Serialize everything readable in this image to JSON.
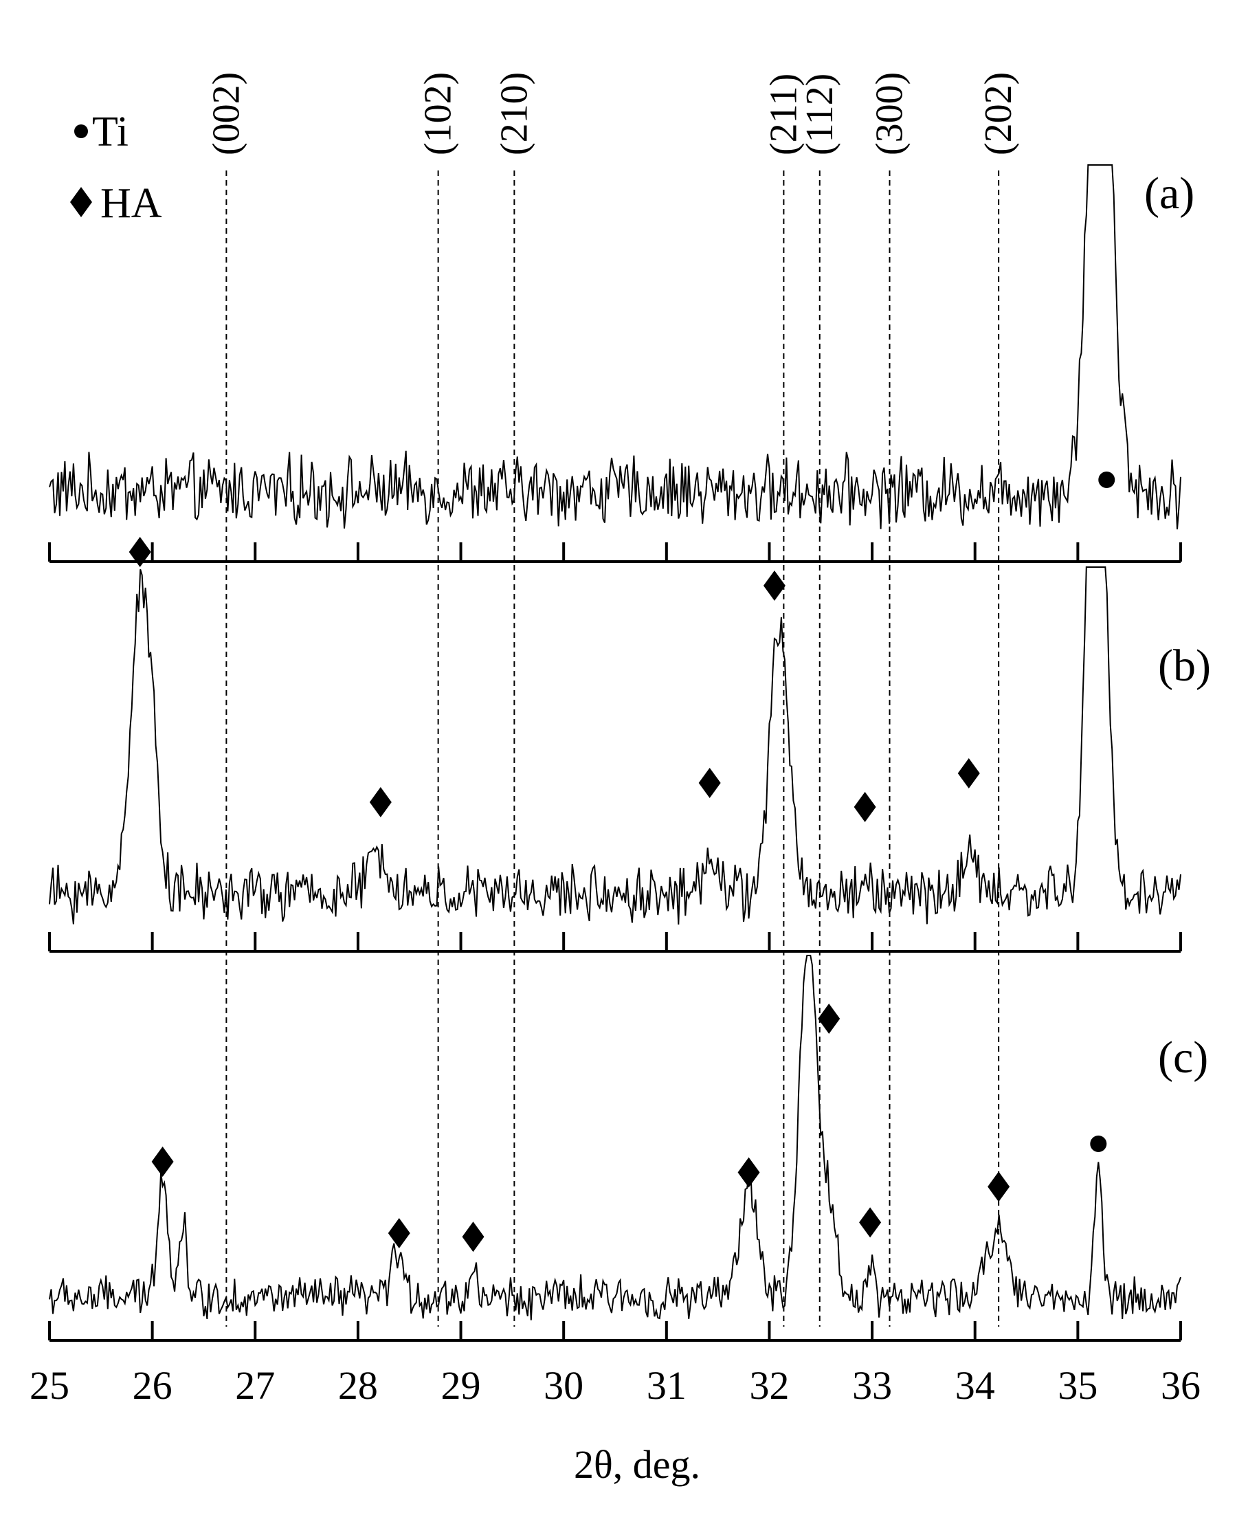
{
  "chart_data": {
    "type": "line",
    "xlabel": "2θ, deg.",
    "xlim": [
      25,
      36
    ],
    "x_ticks": [
      "25",
      "26",
      "27",
      "28",
      "29",
      "30",
      "31",
      "32",
      "33",
      "34",
      "35",
      "36"
    ],
    "grid": false,
    "legend": {
      "placement": "top-left",
      "entries": [
        {
          "marker": "circle",
          "label": "Ti"
        },
        {
          "marker": "diamond",
          "label": "HA"
        }
      ]
    },
    "reference_lines": [
      {
        "label": "(002)",
        "x": 26.72
      },
      {
        "label": "(102)",
        "x": 28.78
      },
      {
        "label": "(210)",
        "x": 29.52
      },
      {
        "label": "(211)",
        "x": 32.14
      },
      {
        "label": "(112)",
        "x": 32.49
      },
      {
        "label": "(300)",
        "x": 33.17
      },
      {
        "label": "(202)",
        "x": 34.23
      }
    ],
    "panels": [
      {
        "label": "(a)",
        "baseline": 0.12,
        "noise": 0.045,
        "peaks": [
          {
            "x": 35.22,
            "height": 1.25,
            "width": 0.13
          },
          {
            "x": 35.05,
            "height": 0.1,
            "width": 0.09
          },
          {
            "x": 35.45,
            "height": 0.06,
            "width": 0.08
          }
        ],
        "markers": [
          {
            "type": "Ti",
            "x": 35.25,
            "y": 1.0
          }
        ]
      },
      {
        "label": "(b)",
        "baseline": 0.12,
        "noise": 0.045,
        "peaks": [
          {
            "x": 25.88,
            "height": 0.62,
            "width": 0.13
          },
          {
            "x": 26.02,
            "height": 0.18,
            "width": 0.09
          },
          {
            "x": 28.2,
            "height": 0.08,
            "width": 0.14
          },
          {
            "x": 31.45,
            "height": 0.09,
            "width": 0.1
          },
          {
            "x": 32.1,
            "height": 0.55,
            "width": 0.13
          },
          {
            "x": 32.95,
            "height": 0.04,
            "width": 0.05
          },
          {
            "x": 33.95,
            "height": 0.07,
            "width": 0.12
          },
          {
            "x": 35.18,
            "height": 1.3,
            "width": 0.12
          }
        ],
        "markers": [
          {
            "type": "Ti",
            "x": 35.28,
            "y": 0.98
          },
          {
            "type": "HA",
            "x": 25.88,
            "y": 0.83
          },
          {
            "type": "HA",
            "x": 28.22,
            "y": 0.31
          },
          {
            "type": "HA",
            "x": 31.42,
            "y": 0.35
          },
          {
            "type": "HA",
            "x": 32.05,
            "y": 0.76
          },
          {
            "type": "HA",
            "x": 32.93,
            "y": 0.3
          },
          {
            "type": "HA",
            "x": 33.94,
            "y": 0.37
          }
        ]
      },
      {
        "label": "(c)",
        "baseline": 0.12,
        "noise": 0.045,
        "peaks": [
          {
            "x": 26.1,
            "height": 0.36,
            "width": 0.07
          },
          {
            "x": 26.3,
            "height": 0.22,
            "width": 0.05
          },
          {
            "x": 28.38,
            "height": 0.14,
            "width": 0.07
          },
          {
            "x": 29.12,
            "height": 0.1,
            "width": 0.04
          },
          {
            "x": 31.8,
            "height": 0.32,
            "width": 0.12
          },
          {
            "x": 32.38,
            "height": 1.0,
            "width": 0.12
          },
          {
            "x": 32.58,
            "height": 0.25,
            "width": 0.1
          },
          {
            "x": 32.98,
            "height": 0.1,
            "width": 0.05
          },
          {
            "x": 34.22,
            "height": 0.2,
            "width": 0.14
          },
          {
            "x": 35.2,
            "height": 0.38,
            "width": 0.05
          }
        ],
        "markers": [
          {
            "type": "Ti",
            "x": 35.2,
            "y": 0.55
          },
          {
            "type": "HA",
            "x": 26.1,
            "y": 0.5
          },
          {
            "type": "HA",
            "x": 28.4,
            "y": 0.3
          },
          {
            "type": "HA",
            "x": 29.12,
            "y": 0.29
          },
          {
            "type": "HA",
            "x": 31.8,
            "y": 0.47
          },
          {
            "type": "HA",
            "x": 32.58,
            "y": 0.9
          },
          {
            "type": "HA",
            "x": 32.98,
            "y": 0.33
          },
          {
            "type": "HA",
            "x": 34.23,
            "y": 0.43
          }
        ]
      }
    ]
  }
}
